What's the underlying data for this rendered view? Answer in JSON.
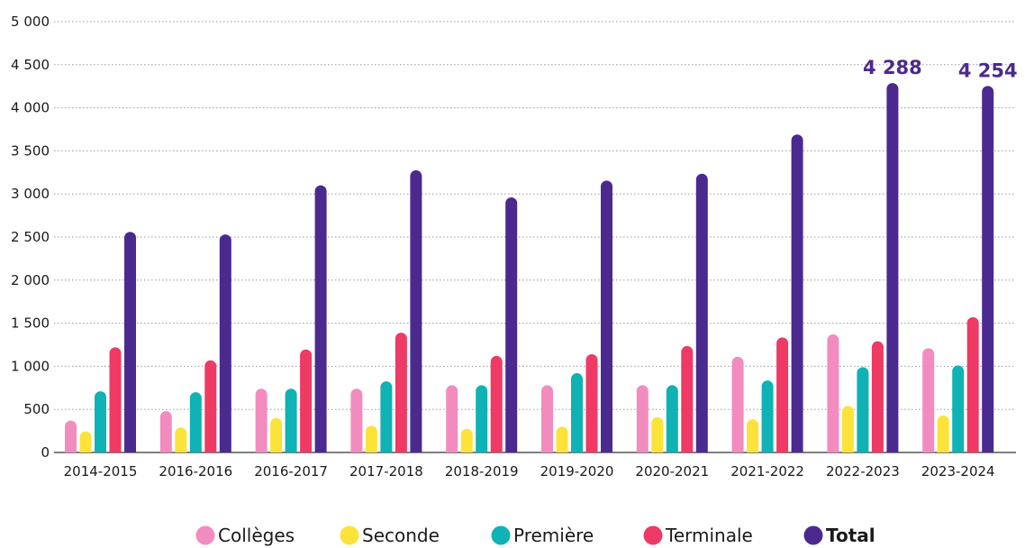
{
  "chart_data": {
    "type": "bar",
    "categories": [
      "2014-2015",
      "2016-2016",
      "2016-2017",
      "2017-2018",
      "2018-2019",
      "2019-2020",
      "2020-2021",
      "2021-2022",
      "2022-2023",
      "2023-2024"
    ],
    "series": [
      {
        "name": "Collèges",
        "color": "#f28cbf",
        "values": [
          370,
          480,
          740,
          740,
          780,
          780,
          780,
          1110,
          1370,
          1210
        ]
      },
      {
        "name": "Seconde",
        "color": "#fbe33a",
        "values": [
          245,
          290,
          400,
          310,
          275,
          300,
          410,
          385,
          540,
          430
        ]
      },
      {
        "name": "Première",
        "color": "#0fb2b5",
        "values": [
          710,
          700,
          740,
          825,
          780,
          920,
          780,
          835,
          990,
          1010
        ]
      },
      {
        "name": "Terminale",
        "color": "#ee3a64",
        "values": [
          1220,
          1070,
          1195,
          1390,
          1120,
          1140,
          1235,
          1335,
          1290,
          1570
        ]
      },
      {
        "name": "Total",
        "color": "#4b2a8f",
        "bold": true,
        "values": [
          2560,
          2530,
          3100,
          3275,
          2960,
          3155,
          3235,
          3690,
          4288,
          4254
        ]
      }
    ],
    "data_labels": [
      {
        "category": "2022-2023",
        "series": "Total",
        "value": 4288,
        "text": "4 288"
      },
      {
        "category": "2023-2024",
        "series": "Total",
        "value": 4254,
        "text": "4 254"
      }
    ],
    "y_ticks": [
      {
        "value": 0,
        "label": "0"
      },
      {
        "value": 500,
        "label": "500"
      },
      {
        "value": 1000,
        "label": "1 000"
      },
      {
        "value": 1500,
        "label": "1 500"
      },
      {
        "value": 2000,
        "label": "2 000"
      },
      {
        "value": 2500,
        "label": "2 500"
      },
      {
        "value": 3000,
        "label": "3 000"
      },
      {
        "value": 3500,
        "label": "3 500"
      },
      {
        "value": 4000,
        "label": "4 000"
      },
      {
        "value": 4500,
        "label": "4 500"
      },
      {
        "value": 5000,
        "label": "5 000"
      }
    ],
    "ylim": [
      0,
      5000
    ],
    "grid": "horizontal-dotted",
    "legend_position": "bottom-center",
    "title": "",
    "xlabel": "",
    "ylabel": ""
  }
}
